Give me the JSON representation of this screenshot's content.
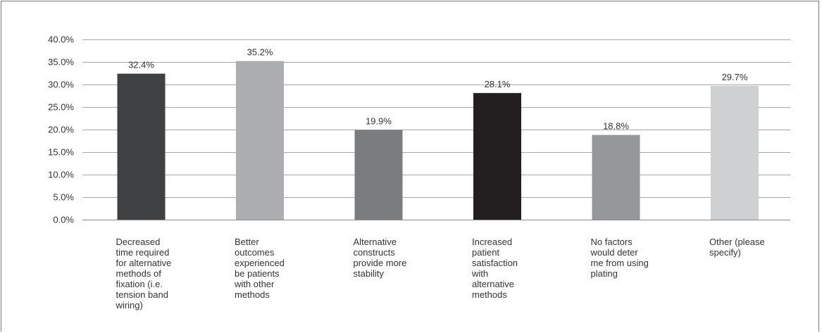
{
  "chart_data": {
    "type": "bar",
    "categories": [
      "Decreased\ntime required\nfor alternative\nmethods of\nfixation (i.e.\ntension band\nwiring)",
      "Better\noutcomes\nexperienced\nbe patients\nwith other\nmethods",
      "Alternative\nconstructs\nprovide more\nstability",
      "Increased\npatient\nsatisfaction\nwith\nalternative\nmethods",
      "No factors\nwould deter\nme from using\nplating",
      "Other (please\nspecify)"
    ],
    "values": [
      32.4,
      35.2,
      19.9,
      28.1,
      18.8,
      29.7
    ],
    "value_labels": [
      "32.4%",
      "35.2%",
      "19.9%",
      "28.1%",
      "18.8%",
      "29.7%"
    ],
    "bar_colors": [
      "#404143",
      "#adaeb0",
      "#7b7c7e",
      "#231f20",
      "#96979a",
      "#cfd0d1"
    ],
    "ylim": [
      0,
      40
    ],
    "yticks": [
      "0.0%",
      "5.0%",
      "10.0%",
      "15.0%",
      "20.0%",
      "25.0%",
      "30.0%",
      "35.0%",
      "40.0%"
    ],
    "grid": true,
    "title": "",
    "xlabel": "",
    "ylabel": ""
  }
}
